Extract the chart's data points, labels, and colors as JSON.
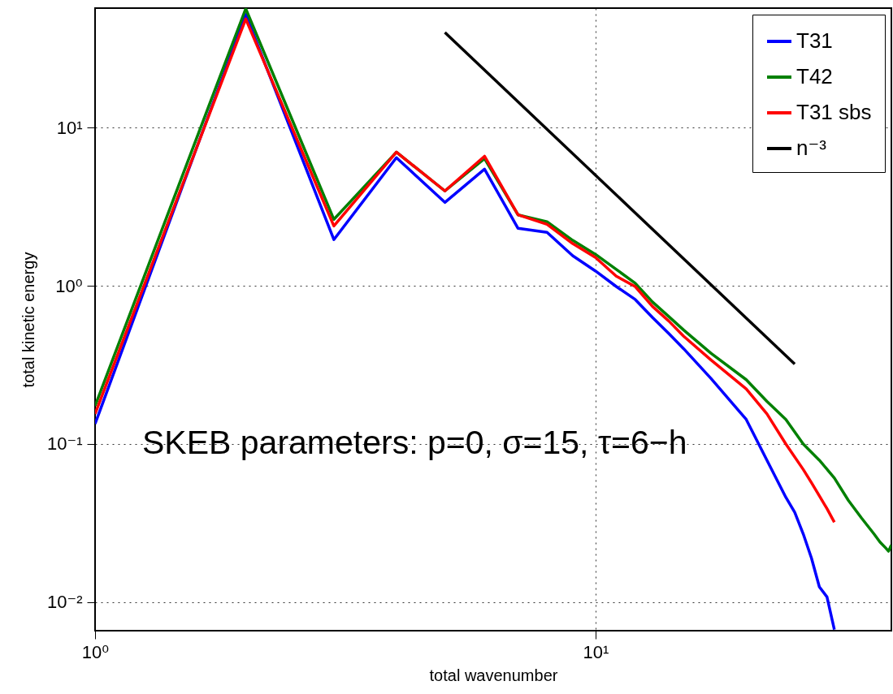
{
  "chart_data": {
    "type": "line",
    "xlabel": "total wavenumber",
    "ylabel": "total kinetic energy",
    "log": "xy",
    "grid": true,
    "legend": "top right",
    "xlim": [
      1,
      39
    ],
    "ylim": [
      0.0066,
      57
    ],
    "xticks": [
      {
        "value": 1,
        "label": "10⁰"
      },
      {
        "value": 10,
        "label": "10¹"
      }
    ],
    "yticks": [
      {
        "value": 0.01,
        "label": "10⁻²"
      },
      {
        "value": 0.1,
        "label": "10⁻¹"
      },
      {
        "value": 1,
        "label": "10⁰"
      },
      {
        "value": 10,
        "label": "10¹"
      }
    ],
    "annotations": [
      "SKEB parameters: p=0, σ=15, τ=6−h"
    ],
    "series": [
      {
        "name": "T31",
        "color": "#0000ff",
        "x": [
          1,
          2,
          3,
          4,
          5,
          6,
          7,
          8,
          9,
          10,
          11,
          12,
          13,
          14,
          15,
          17,
          20,
          22,
          24,
          25,
          26,
          27,
          28,
          29,
          30
        ],
        "values": [
          0.134,
          52,
          1.96,
          6.46,
          3.37,
          5.47,
          2.31,
          2.18,
          1.55,
          1.24,
          0.99,
          0.82,
          0.63,
          0.5,
          0.4,
          0.26,
          0.143,
          0.079,
          0.046,
          0.037,
          0.027,
          0.019,
          0.0125,
          0.0108,
          0.0067
        ]
      },
      {
        "name": "T42",
        "color": "#008000",
        "x": [
          1,
          2,
          3,
          4,
          5,
          6,
          7,
          8,
          9,
          10,
          11,
          12,
          13,
          14,
          15,
          17,
          20,
          22,
          24,
          26,
          28,
          30,
          32,
          34,
          36,
          37,
          38,
          38.5,
          39
        ],
        "values": [
          0.174,
          56.5,
          2.63,
          7.0,
          3.98,
          6.38,
          2.81,
          2.54,
          1.94,
          1.58,
          1.27,
          1.04,
          0.79,
          0.64,
          0.525,
          0.375,
          0.255,
          0.186,
          0.143,
          0.1,
          0.079,
          0.061,
          0.044,
          0.034,
          0.027,
          0.024,
          0.022,
          0.021,
          0.023
        ]
      },
      {
        "name": "T31 sbs",
        "color": "#ff0000",
        "x": [
          1,
          2,
          3,
          4,
          5,
          6,
          7,
          8,
          9,
          10,
          11,
          12,
          13,
          14,
          15,
          17,
          20,
          22,
          24,
          26,
          27,
          28,
          29,
          30
        ],
        "values": [
          0.155,
          48.7,
          2.39,
          7.0,
          3.98,
          6.6,
          2.81,
          2.45,
          1.85,
          1.51,
          1.15,
          0.99,
          0.74,
          0.6,
          0.48,
          0.34,
          0.223,
          0.155,
          0.1,
          0.069,
          0.057,
          0.047,
          0.039,
          0.032
        ]
      },
      {
        "name": "n⁻³",
        "color": "#000000",
        "x": [
          5,
          25
        ],
        "values": [
          40,
          0.32
        ]
      }
    ]
  }
}
